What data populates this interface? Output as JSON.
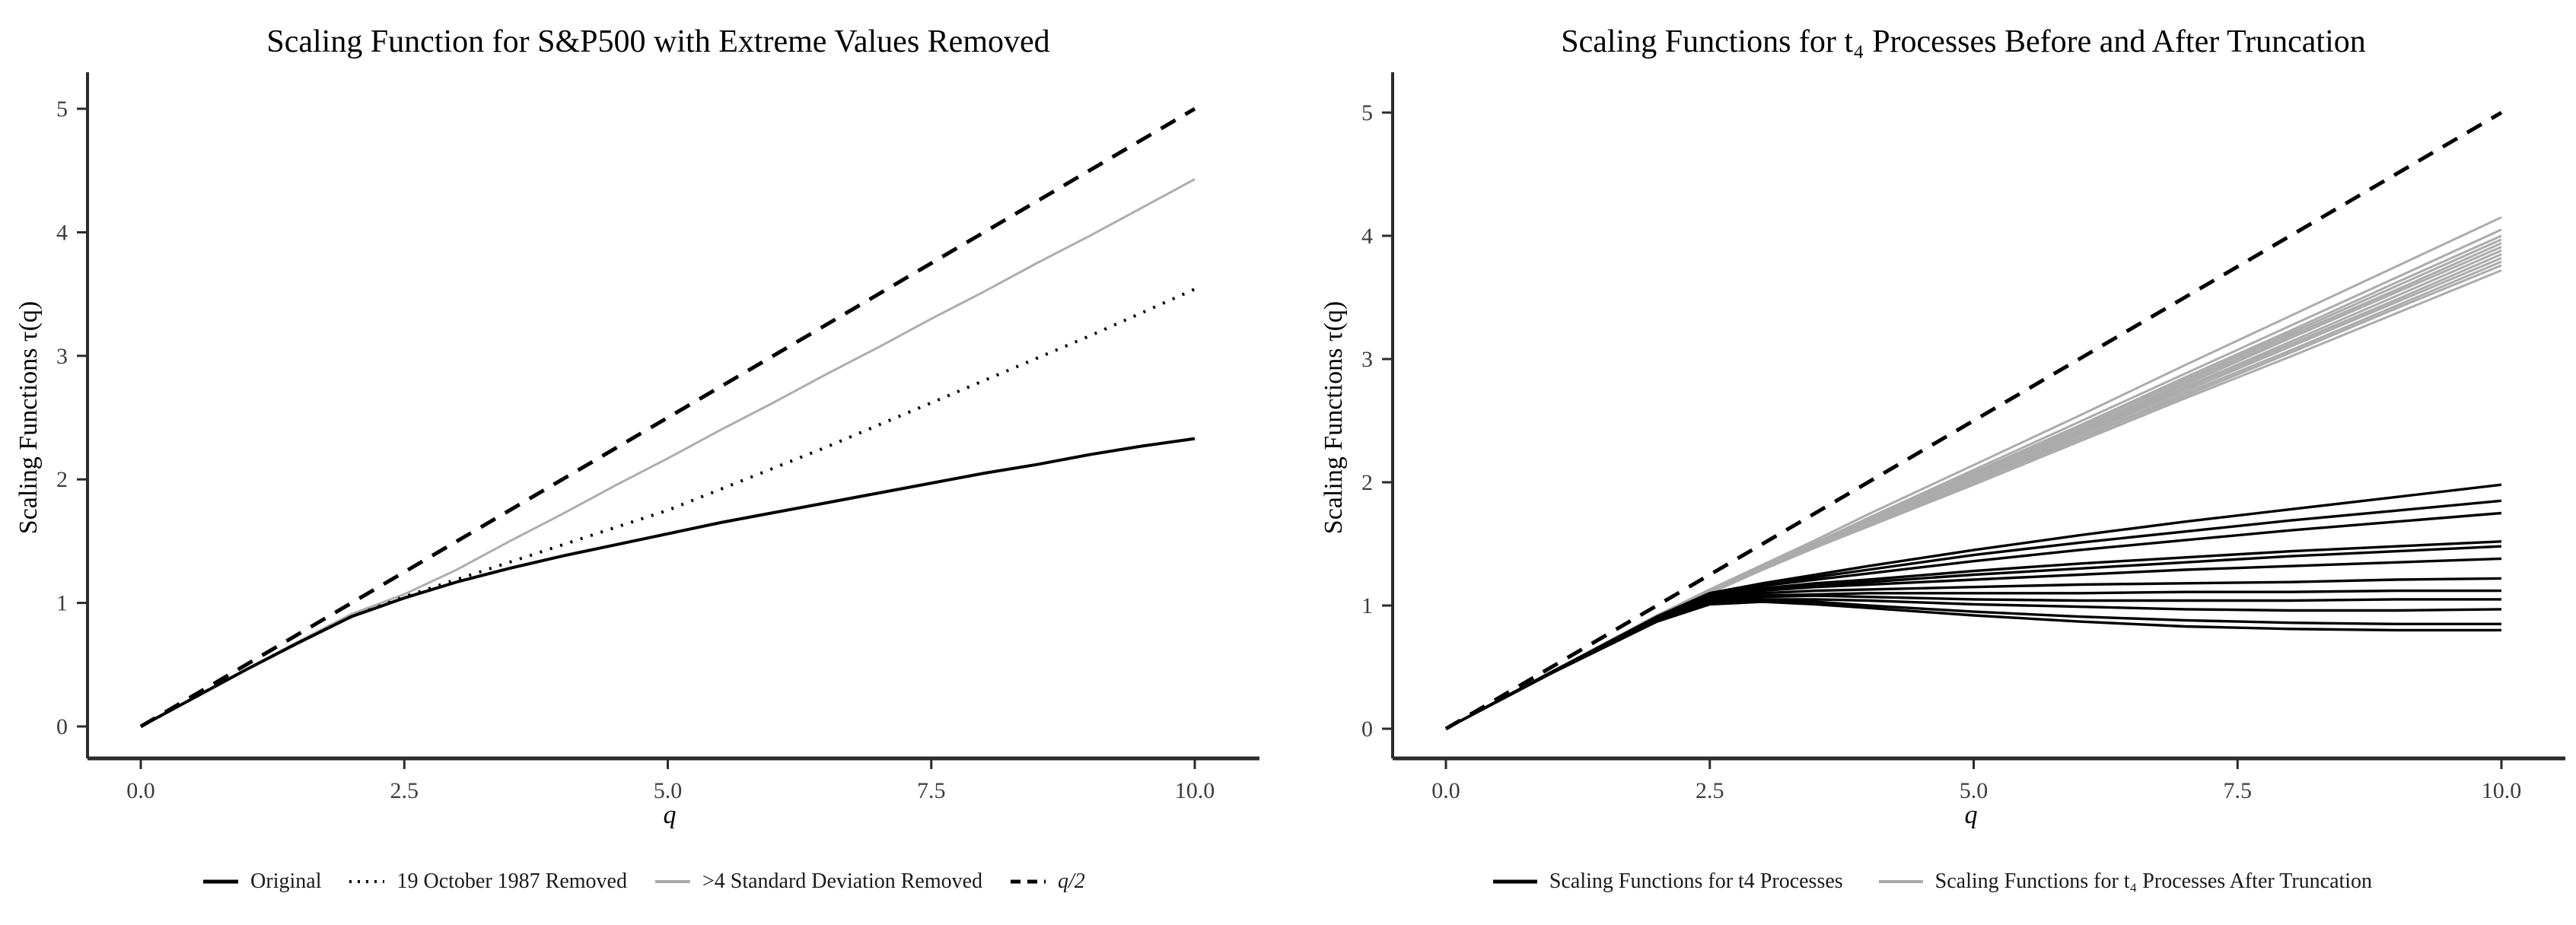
{
  "page": {
    "background": "#ffffff",
    "text_color": "#000000",
    "axis_color": "#2b2b2b",
    "gray_line_color": "#a9a9a9"
  },
  "chart_data": [
    {
      "type": "line",
      "title": "Scaling Function for S&P500 with Extreme Values Removed",
      "xlabel": "q",
      "ylabel": "Scaling Functions τ(q)",
      "xlim": [
        0,
        10.4
      ],
      "ylim": [
        -0.25,
        5.3
      ],
      "grid": "off",
      "legend_position": "bottom",
      "x_ticks": [
        "0.0",
        "2.5",
        "5.0",
        "7.5",
        "10.0"
      ],
      "x_tick_values": [
        0,
        2.5,
        5,
        7.5,
        10
      ],
      "y_ticks": [
        "0",
        "1",
        "2",
        "3",
        "4",
        "5"
      ],
      "y_tick_values": [
        0,
        1,
        2,
        3,
        4,
        5
      ],
      "q": [
        0,
        0.5,
        1,
        1.5,
        2,
        2.5,
        3,
        3.5,
        4,
        4.5,
        5,
        5.5,
        6,
        6.5,
        7,
        7.5,
        8,
        8.5,
        9,
        9.5,
        10
      ],
      "legend": [
        {
          "label": "Original",
          "style": "solid-black"
        },
        {
          "label": "19 October 1987 Removed",
          "style": "dotted"
        },
        {
          "label": ">4 Standard Deviation Removed",
          "style": "solid-gray"
        },
        {
          "label": "q/2",
          "style": "dashed",
          "math": true
        }
      ],
      "series": [
        {
          "name": ">4 Standard Deviation Removed",
          "color": "#adadad",
          "width": 3,
          "dash": "",
          "values": [
            0,
            0.23,
            0.46,
            0.69,
            0.91,
            1.07,
            1.27,
            1.5,
            1.72,
            1.95,
            2.17,
            2.4,
            2.62,
            2.85,
            3.07,
            3.3,
            3.52,
            3.75,
            3.97,
            4.2,
            4.43
          ]
        },
        {
          "name": "19 October 1987 Removed",
          "color": "#000000",
          "width": 4,
          "dash": "3,11",
          "values": [
            0,
            0.23,
            0.46,
            0.68,
            0.89,
            1.05,
            1.19,
            1.33,
            1.47,
            1.61,
            1.75,
            1.92,
            2.09,
            2.26,
            2.44,
            2.62,
            2.8,
            2.98,
            3.16,
            3.35,
            3.54
          ]
        },
        {
          "name": "Original",
          "color": "#000000",
          "width": 4,
          "dash": "",
          "values": [
            0,
            0.23,
            0.46,
            0.68,
            0.89,
            1.04,
            1.17,
            1.28,
            1.38,
            1.47,
            1.56,
            1.65,
            1.73,
            1.81,
            1.89,
            1.97,
            2.05,
            2.12,
            2.2,
            2.27,
            2.33
          ]
        },
        {
          "name": "q/2",
          "color": "#000000",
          "width": 5,
          "dash": "22,15",
          "q": [
            0,
            10
          ],
          "values": [
            0,
            5
          ]
        }
      ]
    },
    {
      "type": "line",
      "title": "Scaling Functions for t₄ Processes Before and After Truncation",
      "xlabel": "q",
      "ylabel": "Scaling Functions τ(q)",
      "xlim": [
        0,
        10.4
      ],
      "ylim": [
        -0.25,
        5.3
      ],
      "grid": "off",
      "legend_position": "bottom",
      "x_ticks": [
        "0.0",
        "2.5",
        "5.0",
        "7.5",
        "10.0"
      ],
      "x_tick_values": [
        0,
        2.5,
        5,
        7.5,
        10
      ],
      "y_ticks": [
        "0",
        "1",
        "2",
        "3",
        "4",
        "5"
      ],
      "y_tick_values": [
        0,
        1,
        2,
        3,
        4,
        5
      ],
      "q": [
        0,
        1,
        2,
        2.5,
        3,
        3.5,
        4,
        5,
        6,
        7,
        8,
        9,
        10
      ],
      "legend": [
        {
          "label": "Scaling Functions for t4 Processes",
          "style": "solid-black"
        },
        {
          "label": "Scaling Functions for t₄ Processes After Truncation",
          "style": "solid-gray"
        }
      ],
      "series": [
        {
          "name": "t4 truncated 1",
          "color": "#ababab",
          "width": 3,
          "dash": "",
          "values": [
            0,
            0.46,
            0.92,
            1.13,
            1.33,
            1.53,
            1.74,
            2.14,
            2.54,
            2.95,
            3.35,
            3.75,
            4.15
          ]
        },
        {
          "name": "t4 truncated 2",
          "color": "#ababab",
          "width": 3,
          "dash": "",
          "values": [
            0,
            0.46,
            0.92,
            1.12,
            1.32,
            1.51,
            1.71,
            2.1,
            2.49,
            2.88,
            3.27,
            3.66,
            4.05
          ]
        },
        {
          "name": "t4 truncated 3",
          "color": "#ababab",
          "width": 3,
          "dash": "",
          "values": [
            0,
            0.46,
            0.92,
            1.12,
            1.31,
            1.5,
            1.7,
            2.08,
            2.46,
            2.85,
            3.23,
            3.62,
            4.0
          ]
        },
        {
          "name": "t4 truncated 4",
          "color": "#ababab",
          "width": 3,
          "dash": "",
          "values": [
            0,
            0.46,
            0.91,
            1.12,
            1.31,
            1.5,
            1.69,
            2.07,
            2.45,
            2.83,
            3.21,
            3.59,
            3.97
          ]
        },
        {
          "name": "t4 truncated 5",
          "color": "#ababab",
          "width": 3,
          "dash": "",
          "values": [
            0,
            0.46,
            0.91,
            1.12,
            1.31,
            1.49,
            1.68,
            2.06,
            2.43,
            2.81,
            3.19,
            3.56,
            3.94
          ]
        },
        {
          "name": "t4 truncated 6",
          "color": "#ababab",
          "width": 3,
          "dash": "",
          "values": [
            0,
            0.46,
            0.91,
            1.12,
            1.31,
            1.49,
            1.68,
            2.05,
            2.42,
            2.79,
            3.17,
            3.54,
            3.91
          ]
        },
        {
          "name": "t4 truncated 7",
          "color": "#ababab",
          "width": 3,
          "dash": "",
          "values": [
            0,
            0.46,
            0.91,
            1.11,
            1.3,
            1.49,
            1.67,
            2.04,
            2.41,
            2.77,
            3.14,
            3.51,
            3.88
          ]
        },
        {
          "name": "t4 truncated 8",
          "color": "#ababab",
          "width": 3,
          "dash": "",
          "values": [
            0,
            0.46,
            0.91,
            1.11,
            1.3,
            1.48,
            1.66,
            2.03,
            2.39,
            2.76,
            3.12,
            3.48,
            3.85
          ]
        },
        {
          "name": "t4 truncated 9",
          "color": "#ababab",
          "width": 3,
          "dash": "",
          "values": [
            0,
            0.46,
            0.91,
            1.11,
            1.3,
            1.48,
            1.66,
            2.02,
            2.38,
            2.74,
            3.1,
            3.46,
            3.82
          ]
        },
        {
          "name": "t4 truncated 10",
          "color": "#ababab",
          "width": 3,
          "dash": "",
          "values": [
            0,
            0.46,
            0.9,
            1.11,
            1.3,
            1.48,
            1.65,
            2.01,
            2.36,
            2.72,
            3.07,
            3.43,
            3.79
          ]
        },
        {
          "name": "t4 truncated 11",
          "color": "#ababab",
          "width": 3,
          "dash": "",
          "values": [
            0,
            0.46,
            0.9,
            1.1,
            1.29,
            1.47,
            1.65,
            2.0,
            2.35,
            2.7,
            3.05,
            3.41,
            3.76
          ]
        },
        {
          "name": "t4 truncated 12",
          "color": "#ababab",
          "width": 3,
          "dash": "",
          "values": [
            0,
            0.46,
            0.9,
            1.1,
            1.29,
            1.47,
            1.64,
            1.98,
            2.33,
            2.68,
            3.02,
            3.37,
            3.72
          ]
        },
        {
          "name": "t4 process 1",
          "color": "#000000",
          "width": 3.4,
          "dash": "",
          "values": [
            0,
            0.46,
            0.91,
            1.1,
            1.18,
            1.25,
            1.32,
            1.45,
            1.57,
            1.68,
            1.78,
            1.88,
            1.98
          ]
        },
        {
          "name": "t4 process 2",
          "color": "#000000",
          "width": 3.4,
          "dash": "",
          "values": [
            0,
            0.46,
            0.91,
            1.1,
            1.17,
            1.23,
            1.29,
            1.41,
            1.51,
            1.6,
            1.69,
            1.77,
            1.85
          ]
        },
        {
          "name": "t4 process 3",
          "color": "#000000",
          "width": 3.4,
          "dash": "",
          "values": [
            0,
            0.46,
            0.9,
            1.09,
            1.16,
            1.21,
            1.26,
            1.36,
            1.45,
            1.53,
            1.61,
            1.68,
            1.75
          ]
        },
        {
          "name": "t4 process 4",
          "color": "#000000",
          "width": 3.4,
          "dash": "",
          "values": [
            0,
            0.46,
            0.9,
            1.08,
            1.14,
            1.18,
            1.21,
            1.28,
            1.34,
            1.39,
            1.44,
            1.48,
            1.52
          ]
        },
        {
          "name": "t4 process 5",
          "color": "#000000",
          "width": 3.4,
          "dash": "",
          "values": [
            0,
            0.46,
            0.9,
            1.08,
            1.13,
            1.16,
            1.19,
            1.25,
            1.3,
            1.35,
            1.4,
            1.44,
            1.48
          ]
        },
        {
          "name": "t4 process 6",
          "color": "#000000",
          "width": 3.4,
          "dash": "",
          "values": [
            0,
            0.46,
            0.89,
            1.07,
            1.12,
            1.15,
            1.17,
            1.21,
            1.25,
            1.29,
            1.32,
            1.35,
            1.38
          ]
        },
        {
          "name": "t4 process 7",
          "color": "#000000",
          "width": 3.4,
          "dash": "",
          "values": [
            0,
            0.46,
            0.89,
            1.06,
            1.1,
            1.12,
            1.13,
            1.15,
            1.17,
            1.18,
            1.19,
            1.21,
            1.22
          ]
        },
        {
          "name": "t4 process 8",
          "color": "#000000",
          "width": 3.4,
          "dash": "",
          "values": [
            0,
            0.46,
            0.89,
            1.05,
            1.08,
            1.09,
            1.1,
            1.1,
            1.1,
            1.11,
            1.11,
            1.12,
            1.12
          ]
        },
        {
          "name": "t4 process 9",
          "color": "#000000",
          "width": 3.4,
          "dash": "",
          "values": [
            0,
            0.46,
            0.88,
            1.04,
            1.07,
            1.08,
            1.07,
            1.05,
            1.04,
            1.04,
            1.04,
            1.05,
            1.05
          ]
        },
        {
          "name": "t4 process 10",
          "color": "#000000",
          "width": 3.4,
          "dash": "",
          "values": [
            0,
            0.46,
            0.88,
            1.03,
            1.05,
            1.05,
            1.04,
            1.01,
            0.99,
            0.97,
            0.96,
            0.96,
            0.97
          ]
        },
        {
          "name": "t4 process 11",
          "color": "#000000",
          "width": 3.4,
          "dash": "",
          "values": [
            0,
            0.46,
            0.88,
            1.02,
            1.04,
            1.03,
            1.0,
            0.95,
            0.91,
            0.88,
            0.86,
            0.85,
            0.85
          ]
        },
        {
          "name": "t4 process 12",
          "color": "#000000",
          "width": 3.4,
          "dash": "",
          "values": [
            0,
            0.45,
            0.87,
            1.01,
            1.03,
            1.01,
            0.98,
            0.92,
            0.87,
            0.83,
            0.81,
            0.8,
            0.8
          ]
        },
        {
          "name": "q/2",
          "color": "#000000",
          "width": 5,
          "dash": "22,15",
          "q": [
            0,
            10
          ],
          "values": [
            0,
            5
          ]
        }
      ]
    }
  ]
}
